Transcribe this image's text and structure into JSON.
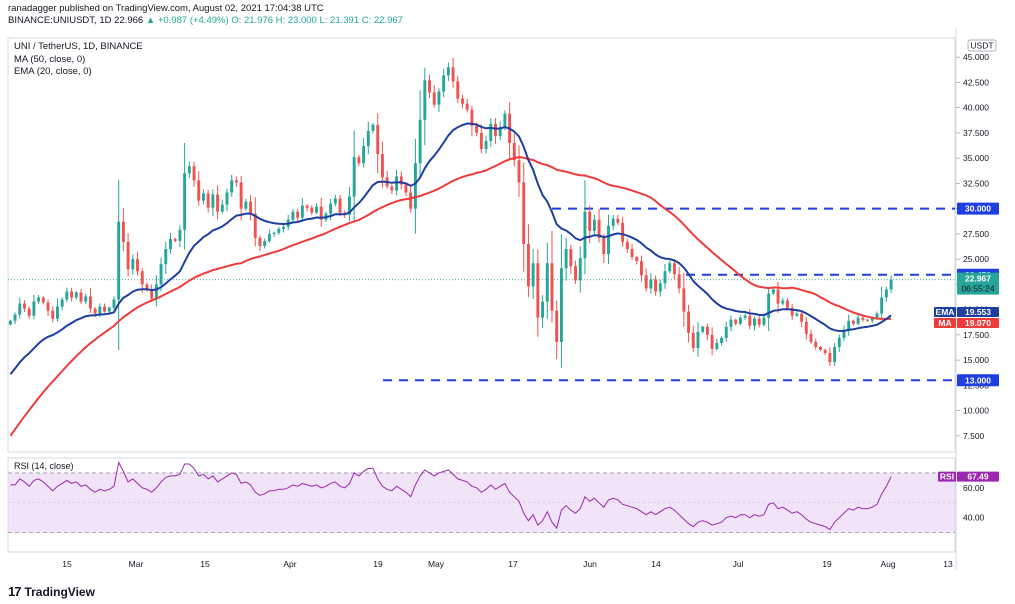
{
  "header": {
    "line1": "ranadagger published on TradingView.com, August 02, 2021 17:04:38 UTC",
    "symbol": "BINANCE:UNIUSDT, 1D",
    "price": "22.966",
    "change": "▲ +0.987 (+4.49%)",
    "ohlc": "O: 21.976  H: 23.000  L: 21.391  C: 22.967"
  },
  "legend": {
    "title": "UNI / TetherUS, 1D, BINANCE",
    "ma": "MA (50, close, 0)",
    "ema": "EMA (20, close, 0)"
  },
  "rsi_legend": "RSI (14, close)",
  "footer": {
    "logo": "17",
    "brand": "TradingView"
  },
  "colors": {
    "up": "#26a69a",
    "down": "#ef5350",
    "ema": "#1e3fa0",
    "ma": "#ef3b3b",
    "level": "#1f3fe0",
    "rsi": "#9c27b0",
    "rsi_band": "#e9d5f5",
    "last": "#26a69a"
  },
  "chart_data": [
    {
      "type": "candlestick",
      "currency": "USDT",
      "x_ticks": [
        "15",
        "Mar",
        "15",
        "Apr",
        "19",
        "May",
        "17",
        "Jun",
        "14",
        "Jul",
        "19",
        "Aug",
        "13"
      ],
      "y_ticks": [
        "45.000",
        "42.500",
        "40.000",
        "37.500",
        "35.000",
        "32.500",
        "30.000",
        "27.500",
        "25.000",
        "22.500",
        "20.000",
        "17.500",
        "15.000",
        "12.500",
        "10.000",
        "7.500"
      ],
      "ylim": [
        5.9,
        46.9
      ],
      "horizontal_levels": [
        {
          "label": "30.000",
          "value": 30.0
        },
        {
          "label": "23.450",
          "value": 23.45
        },
        {
          "label": "13.000",
          "value": 13.0
        }
      ],
      "price_tags": [
        {
          "label": "22.967",
          "value": 22.967,
          "sub": "06:55:24"
        }
      ],
      "indicator_tags": [
        {
          "name": "EMA",
          "label": "19.553",
          "value": 19.553
        },
        {
          "name": "MA",
          "label": "19.070",
          "value": 19.07
        }
      ],
      "closes": [
        18.9,
        19.5,
        20.6,
        20.1,
        19.4,
        20.8,
        21.2,
        20.7,
        19.9,
        19.1,
        20.3,
        21.0,
        21.8,
        21.2,
        21.7,
        20.8,
        21.3,
        20.1,
        19.6,
        20.3,
        19.8,
        20.2,
        21.0,
        28.7,
        26.7,
        24.0,
        25.0,
        23.8,
        22.5,
        22.0,
        21.1,
        22.5,
        24.5,
        26.0,
        27.0,
        26.8,
        27.9,
        33.5,
        34.2,
        32.8,
        30.8,
        31.5,
        30.1,
        31.4,
        29.7,
        30.4,
        31.6,
        32.8,
        32.6,
        30.0,
        30.7,
        29.5,
        27.1,
        26.3,
        26.8,
        27.5,
        27.6,
        28.0,
        28.2,
        28.9,
        29.7,
        29.1,
        30.3,
        30.1,
        29.6,
        30.2,
        28.9,
        29.5,
        30.5,
        31.0,
        29.6,
        29.4,
        31.2,
        35.1,
        34.5,
        36.2,
        37.7,
        38.3,
        35.4,
        33.1,
        32.2,
        31.8,
        33.2,
        32.4,
        31.6,
        30.0,
        34.5,
        38.8,
        42.7,
        41.5,
        40.3,
        41.6,
        43.2,
        44.0,
        42.6,
        40.9,
        40.4,
        39.8,
        38.2,
        37.5,
        35.9,
        36.7,
        38.4,
        37.2,
        38.1,
        39.4,
        36.5,
        34.8,
        32.6,
        26.5,
        22.3,
        24.6,
        19.2,
        20.8,
        24.6,
        19.9,
        16.8,
        24.1,
        26.0,
        24.3,
        22.9,
        25.1,
        29.7,
        27.8,
        28.9,
        27.1,
        25.5,
        28.3,
        29.0,
        28.6,
        26.7,
        26.0,
        25.2,
        24.8,
        23.4,
        22.1,
        23.0,
        21.8,
        22.6,
        23.8,
        24.6,
        23.5,
        22.1,
        19.8,
        17.7,
        16.2,
        17.8,
        18.3,
        17.5,
        16.1,
        16.7,
        17.2,
        18.3,
        19.0,
        18.6,
        19.2,
        19.4,
        18.4,
        19.1,
        18.5,
        19.2,
        21.6,
        22.0,
        20.6,
        20.9,
        20.2,
        19.4,
        19.6,
        18.8,
        17.6,
        16.8,
        16.3,
        16.0,
        15.7,
        14.8,
        16.3,
        17.2,
        18.0,
        18.9,
        18.6,
        19.2,
        19.0,
        18.9,
        19.2,
        19.6,
        21.2,
        22.0,
        22.967
      ],
      "panes": [
        {
          "name": "RSI",
          "series_name": "RSI",
          "y_ticks": [
            "60.00",
            "40.00"
          ],
          "band": [
            30,
            70
          ],
          "last": {
            "label": "67.49",
            "value": 67.49
          },
          "values": [
            62,
            62,
            66,
            64,
            61,
            65,
            66,
            64,
            61,
            58,
            61,
            63,
            65,
            63,
            64,
            61,
            62,
            59,
            57,
            59,
            58,
            59,
            61,
            77,
            71,
            64,
            66,
            63,
            60,
            59,
            57,
            60,
            64,
            67,
            68,
            68,
            69,
            76,
            76,
            73,
            68,
            69,
            66,
            68,
            64,
            66,
            68,
            70,
            69,
            63,
            64,
            62,
            57,
            55,
            56,
            58,
            58,
            59,
            59,
            60,
            62,
            61,
            63,
            62,
            61,
            62,
            60,
            61,
            63,
            64,
            61,
            60,
            63,
            70,
            68,
            71,
            73,
            73,
            66,
            61,
            59,
            58,
            61,
            59,
            57,
            54,
            62,
            68,
            72,
            70,
            68,
            70,
            71,
            72,
            69,
            66,
            65,
            64,
            61,
            60,
            57,
            59,
            62,
            59,
            61,
            63,
            57,
            54,
            51,
            43,
            38,
            42,
            35,
            38,
            44,
            37,
            33,
            45,
            48,
            45,
            43,
            46,
            54,
            51,
            53,
            50,
            47,
            52,
            53,
            52,
            49,
            48,
            47,
            46,
            44,
            42,
            44,
            42,
            44,
            46,
            47,
            45,
            42,
            39,
            36,
            34,
            37,
            38,
            37,
            35,
            36,
            37,
            40,
            41,
            40,
            42,
            42,
            40,
            42,
            41,
            42,
            49,
            50,
            46,
            47,
            45,
            43,
            44,
            42,
            39,
            37,
            36,
            35,
            34,
            32,
            37,
            40,
            43,
            46,
            45,
            47,
            46,
            46,
            47,
            49,
            56,
            61,
            67.49
          ]
        }
      ]
    }
  ]
}
